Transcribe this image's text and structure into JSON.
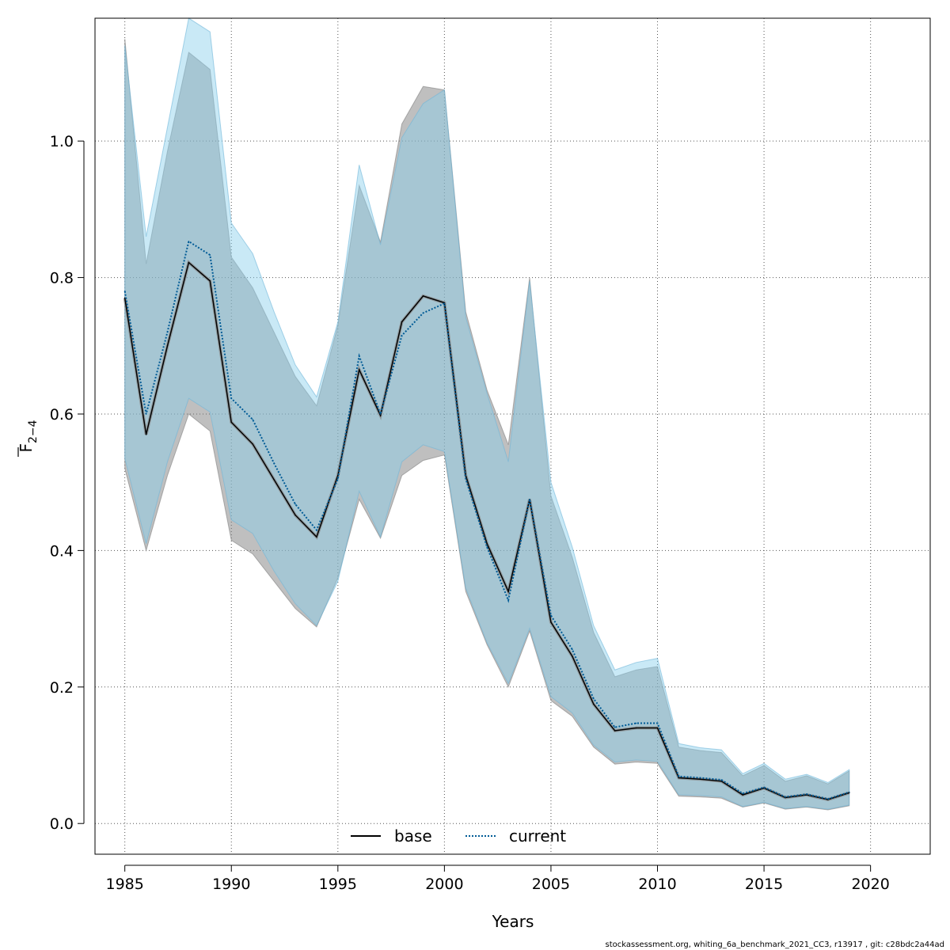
{
  "chart_data": {
    "type": "line",
    "title": "",
    "xlabel": "Years",
    "ylabel_base": "F",
    "ylabel_sub": "2−4",
    "xlim": [
      1983.6,
      2022.8
    ],
    "ylim": [
      -0.045,
      1.18
    ],
    "x_ticks": [
      1985,
      1990,
      1995,
      2000,
      2005,
      2010,
      2015,
      2020
    ],
    "x_tick_labels": [
      "1985",
      "1990",
      "1995",
      "2000",
      "2005",
      "2010",
      "2015",
      "2020"
    ],
    "y_ticks": [
      0.0,
      0.2,
      0.4,
      0.6,
      0.8,
      1.0
    ],
    "y_tick_labels": [
      "0.0",
      "0.2",
      "0.4",
      "0.6",
      "0.8",
      "1.0"
    ],
    "grid": true,
    "legend_placement": "bottom",
    "x": [
      1985,
      1986,
      1987,
      1988,
      1989,
      1990,
      1991,
      1992,
      1993,
      1994,
      1995,
      1996,
      1997,
      1998,
      1999,
      2000,
      2001,
      2002,
      2003,
      2004,
      2005,
      2006,
      2007,
      2008,
      2009,
      2010,
      2011,
      2012,
      2013,
      2014,
      2015,
      2016,
      2017,
      2018,
      2019
    ],
    "series": [
      {
        "name": "base",
        "color": "#000000",
        "fill": "#808080",
        "line_style": "solid",
        "values": [
          0.77,
          0.57,
          0.7,
          0.822,
          0.795,
          0.588,
          0.556,
          0.504,
          0.452,
          0.42,
          0.51,
          0.665,
          0.598,
          0.735,
          0.773,
          0.763,
          0.51,
          0.41,
          0.34,
          0.475,
          0.295,
          0.245,
          0.175,
          0.136,
          0.14,
          0.14,
          0.067,
          0.065,
          0.062,
          0.042,
          0.052,
          0.038,
          0.042,
          0.035,
          0.045
        ],
        "lower": [
          0.52,
          0.4,
          0.51,
          0.6,
          0.575,
          0.415,
          0.395,
          0.355,
          0.315,
          0.288,
          0.36,
          0.475,
          0.418,
          0.51,
          0.532,
          0.54,
          0.34,
          0.262,
          0.2,
          0.282,
          0.18,
          0.157,
          0.112,
          0.087,
          0.09,
          0.088,
          0.04,
          0.039,
          0.037,
          0.024,
          0.03,
          0.021,
          0.024,
          0.02,
          0.026
        ],
        "upper": [
          1.15,
          0.82,
          0.985,
          1.13,
          1.105,
          0.83,
          0.785,
          0.72,
          0.655,
          0.612,
          0.73,
          0.935,
          0.852,
          1.025,
          1.08,
          1.075,
          0.75,
          0.635,
          0.555,
          0.8,
          0.48,
          0.39,
          0.28,
          0.215,
          0.225,
          0.23,
          0.112,
          0.107,
          0.104,
          0.07,
          0.085,
          0.062,
          0.07,
          0.058,
          0.077
        ]
      },
      {
        "name": "current",
        "color": "#005b96",
        "fill": "#87ceeb",
        "line_style": "dotted",
        "values": [
          0.78,
          0.6,
          0.72,
          0.853,
          0.833,
          0.623,
          0.592,
          0.528,
          0.468,
          0.43,
          0.505,
          0.685,
          0.6,
          0.715,
          0.748,
          0.762,
          0.505,
          0.405,
          0.327,
          0.475,
          0.305,
          0.255,
          0.183,
          0.141,
          0.147,
          0.147,
          0.069,
          0.067,
          0.064,
          0.044,
          0.053,
          0.039,
          0.043,
          0.036,
          0.046
        ],
        "lower": [
          0.535,
          0.41,
          0.53,
          0.623,
          0.603,
          0.445,
          0.425,
          0.37,
          0.322,
          0.29,
          0.355,
          0.487,
          0.42,
          0.53,
          0.555,
          0.545,
          0.345,
          0.265,
          0.205,
          0.286,
          0.186,
          0.162,
          0.115,
          0.09,
          0.093,
          0.091,
          0.042,
          0.041,
          0.039,
          0.025,
          0.031,
          0.022,
          0.025,
          0.021,
          0.027
        ],
        "upper": [
          1.14,
          0.86,
          1.02,
          1.18,
          1.16,
          0.88,
          0.835,
          0.75,
          0.672,
          0.625,
          0.735,
          0.965,
          0.848,
          1.005,
          1.055,
          1.075,
          0.742,
          0.63,
          0.53,
          0.795,
          0.5,
          0.405,
          0.29,
          0.225,
          0.236,
          0.242,
          0.117,
          0.111,
          0.108,
          0.073,
          0.088,
          0.065,
          0.072,
          0.06,
          0.079
        ]
      }
    ]
  },
  "footer_text": "stockassessment.org, whiting_6a_benchmark_2021_CC3, r13917 , git: c28bdc2a44ad"
}
